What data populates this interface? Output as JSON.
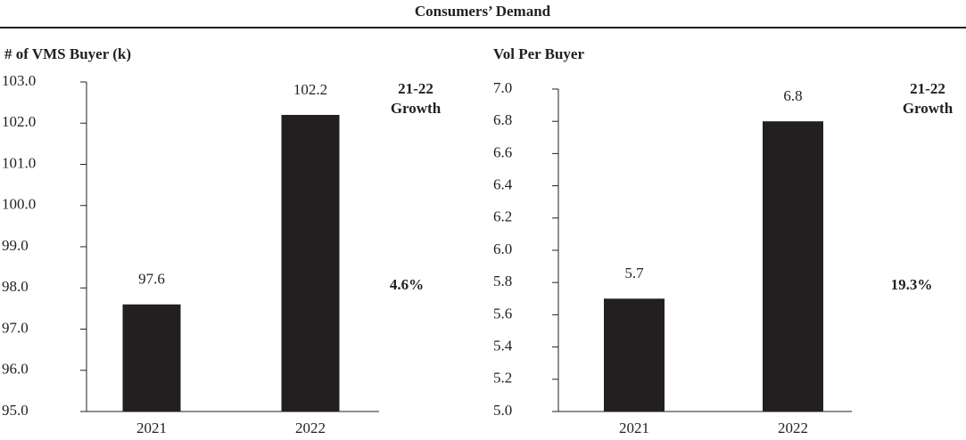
{
  "title": "Consumers’ Demand",
  "chart_data": [
    {
      "type": "bar",
      "title": "# of VMS Buyer (k)",
      "categories": [
        "2021",
        "2022"
      ],
      "values": [
        97.6,
        102.2
      ],
      "color": "#231f20",
      "ylim": [
        95,
        103
      ],
      "yticks": [
        {
          "value": 95,
          "label": "95.0"
        },
        {
          "value": 96,
          "label": "96.0"
        },
        {
          "value": 97,
          "label": "97.0"
        },
        {
          "value": 98,
          "label": "98.0"
        },
        {
          "value": 99,
          "label": "99.0"
        },
        {
          "value": 100,
          "label": "100.0"
        },
        {
          "value": 101,
          "label": "101.0"
        },
        {
          "value": 102,
          "label": "102.0"
        },
        {
          "value": 103,
          "label": "103.0"
        }
      ],
      "growth_header": [
        "21-22",
        "Growth"
      ],
      "growth": "4.6%"
    },
    {
      "type": "bar",
      "title": "Vol Per Buyer",
      "categories": [
        "2021",
        "2022"
      ],
      "values": [
        5.7,
        6.8
      ],
      "color": "#231f20",
      "ylim": [
        5,
        7
      ],
      "yticks": [
        {
          "value": 5,
          "label": "5.0"
        },
        5.2,
        5.4,
        5.6,
        5.8,
        {
          "value": 6,
          "label": "6.0"
        },
        6.2,
        6.4,
        6.6,
        6.8,
        {
          "value": 7,
          "label": "7.0"
        }
      ],
      "growth_header": [
        "21-22",
        "Growth"
      ],
      "growth": "19.3%"
    }
  ]
}
